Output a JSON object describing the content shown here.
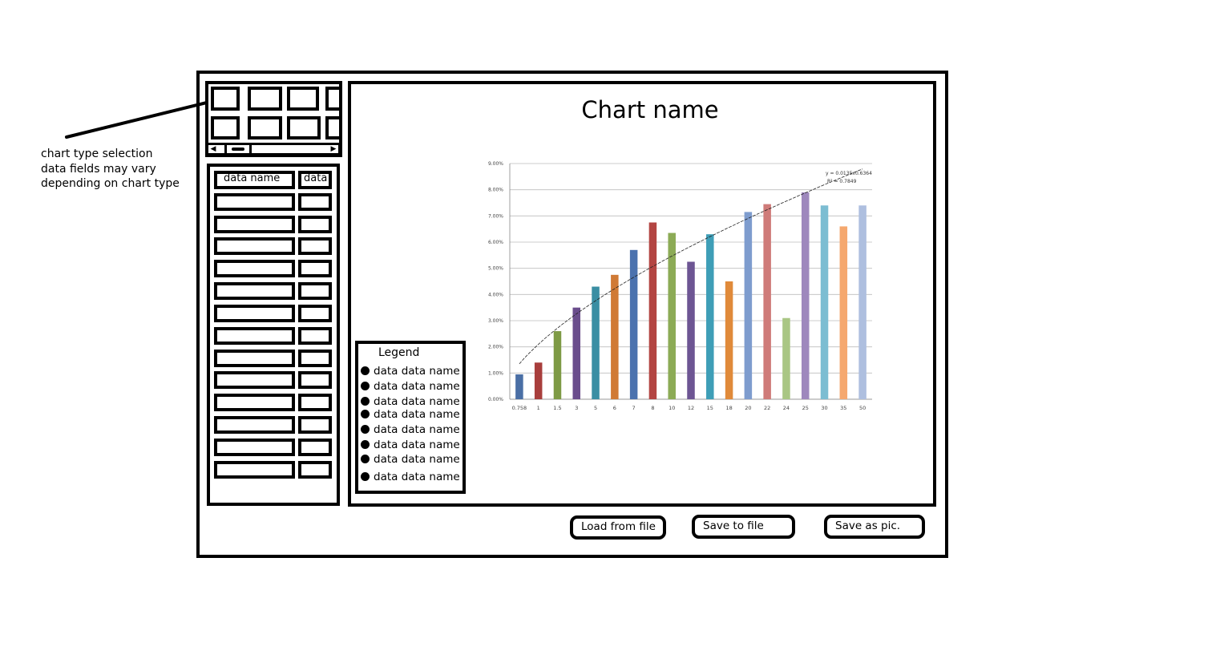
{
  "annotation": {
    "lines": [
      "chart type selection",
      "data fields may vary",
      "depending on chart type"
    ]
  },
  "data_table": {
    "header_name": "data name",
    "header_value": "data"
  },
  "chart": {
    "title": "Chart name"
  },
  "legend": {
    "title": "Legend",
    "items": [
      "data data name",
      "data data name",
      "data data name",
      "data data name",
      "data data name",
      "data data name",
      "data data name",
      "data data name"
    ]
  },
  "buttons": {
    "load": "Load from file",
    "save": "Save to file",
    "save_pic": "Save as pic."
  },
  "chart_data": {
    "type": "bar",
    "categories": [
      "0.758",
      "1",
      "1.5",
      "3",
      "5",
      "6",
      "7",
      "8",
      "10",
      "12",
      "15",
      "18",
      "20",
      "22",
      "24",
      "25",
      "30",
      "35",
      "50"
    ],
    "values": [
      0.0095,
      0.014,
      0.026,
      0.035,
      0.043,
      0.0475,
      0.057,
      0.0675,
      0.0635,
      0.0525,
      0.063,
      0.045,
      0.0715,
      0.0745,
      0.031,
      0.079,
      0.074,
      0.066,
      0.074
    ],
    "colors": [
      "#4a6fa5",
      "#a83e3c",
      "#7e9a45",
      "#6a4d8c",
      "#3a8ea3",
      "#d07a35",
      "#4b72ae",
      "#b34542",
      "#8cab56",
      "#6d5593",
      "#3e9eb7",
      "#e08a3a",
      "#7e9cce",
      "#cf7b79",
      "#a9c684",
      "#9e88bd",
      "#7cbdd2",
      "#f5a86f",
      "#aebfdf"
    ],
    "ylim": [
      0,
      0.09
    ],
    "yticks": [
      "0.00%",
      "1.00%",
      "2.00%",
      "3.00%",
      "4.00%",
      "5.00%",
      "6.00%",
      "7.00%",
      "8.00%",
      "9.00%"
    ],
    "grid": true,
    "trendline": {
      "type": "power",
      "equation": "y = 0.0135x0.6364",
      "r2_label": "R² = 0.7849"
    }
  }
}
